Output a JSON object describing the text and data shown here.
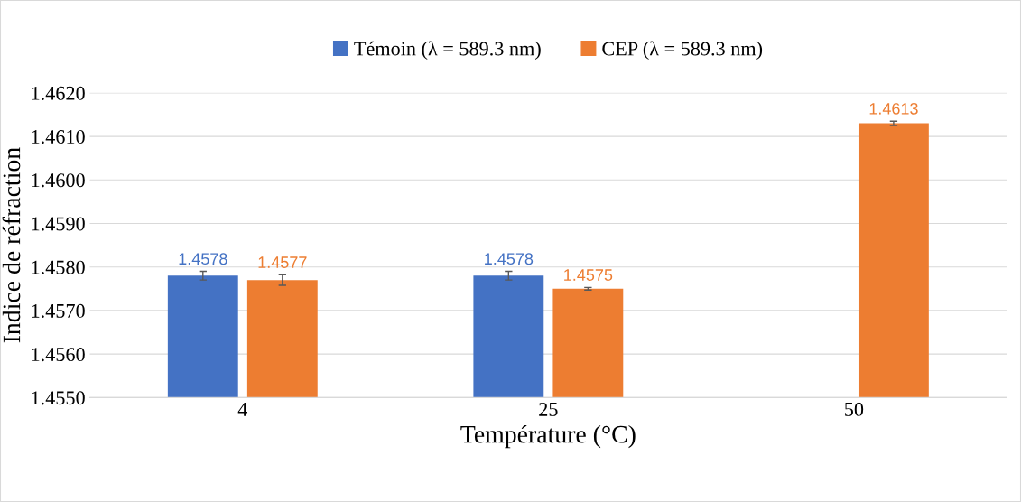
{
  "chart_data": {
    "type": "bar",
    "xlabel": "Température (°C)",
    "ylabel": "Indice de réfraction",
    "categories": [
      "4",
      "25",
      "50"
    ],
    "series": [
      {
        "name": "Témoin (λ = 589.3 nm)",
        "color": "#4472c4",
        "values": [
          1.4578,
          1.4578,
          null
        ],
        "errors": [
          0.0001,
          0.0001,
          null
        ]
      },
      {
        "name": "CEP (λ = 589.3 nm)",
        "color": "#ed7d31",
        "values": [
          1.4577,
          1.4575,
          1.4613
        ],
        "errors": [
          0.00012,
          3e-05,
          5e-05
        ]
      }
    ],
    "ylim": [
      1.455,
      1.462
    ],
    "yticks": [
      {
        "value": 1.455,
        "label": "1.4550"
      },
      {
        "value": 1.456,
        "label": "1.4560"
      },
      {
        "value": 1.457,
        "label": "1.4570"
      },
      {
        "value": 1.458,
        "label": "1.4580"
      },
      {
        "value": 1.459,
        "label": "1.4590"
      },
      {
        "value": 1.46,
        "label": "1.4600"
      },
      {
        "value": 1.461,
        "label": "1.4610"
      },
      {
        "value": 1.462,
        "label": "1.4620"
      }
    ],
    "grid": "y",
    "legend": "top",
    "data_labels": true
  }
}
